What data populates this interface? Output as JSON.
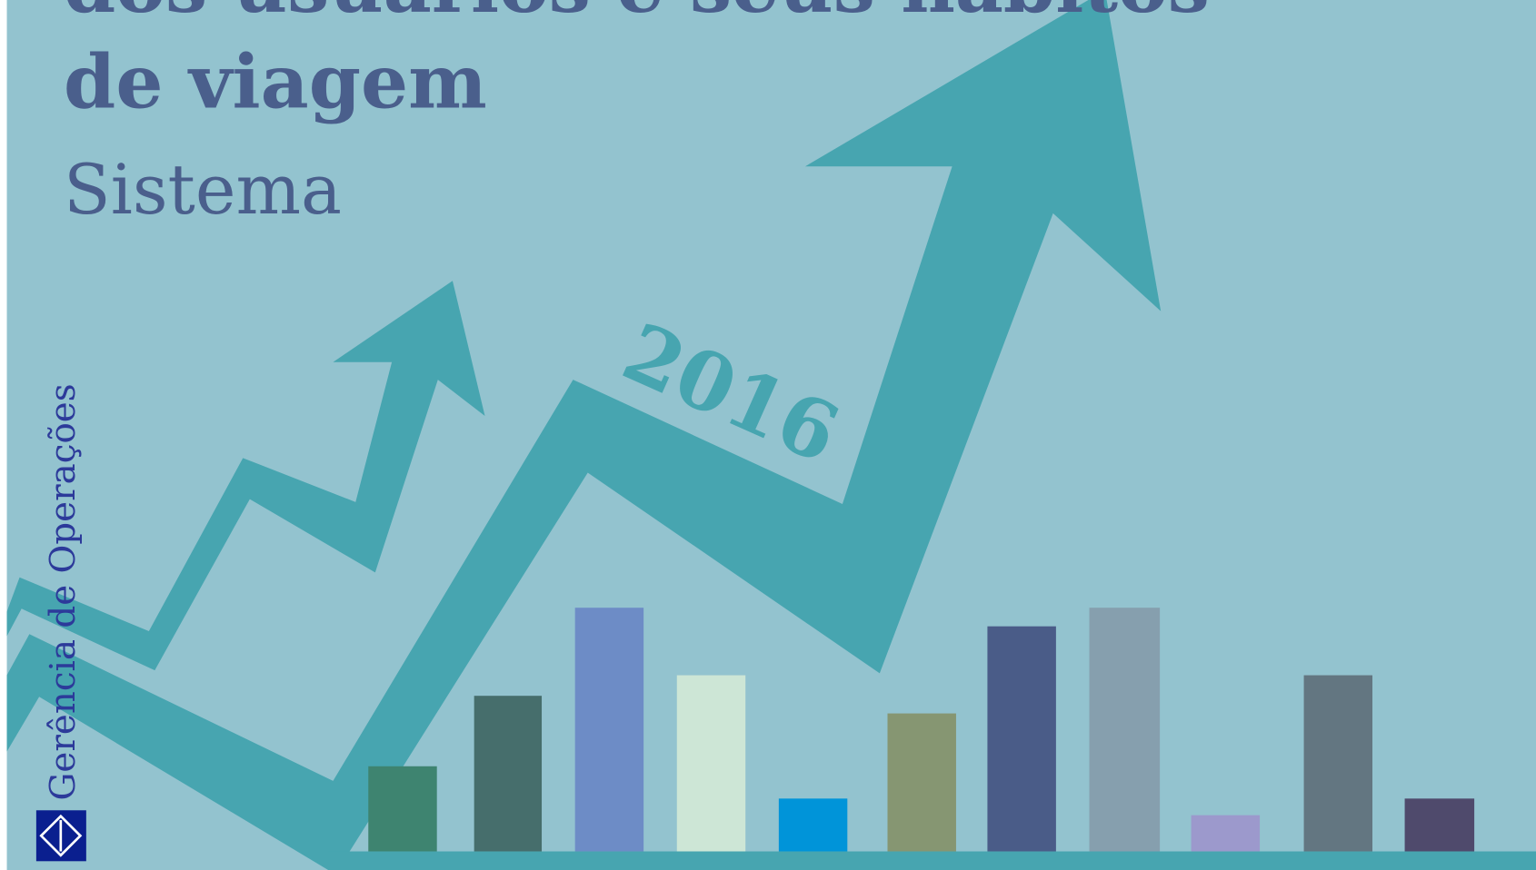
{
  "title": {
    "lines": [
      "dos usuários e seus hábitos",
      "de viagem"
    ]
  },
  "subtitle": "Sistema",
  "year": "2016",
  "department": "Gerência de Operações"
}
